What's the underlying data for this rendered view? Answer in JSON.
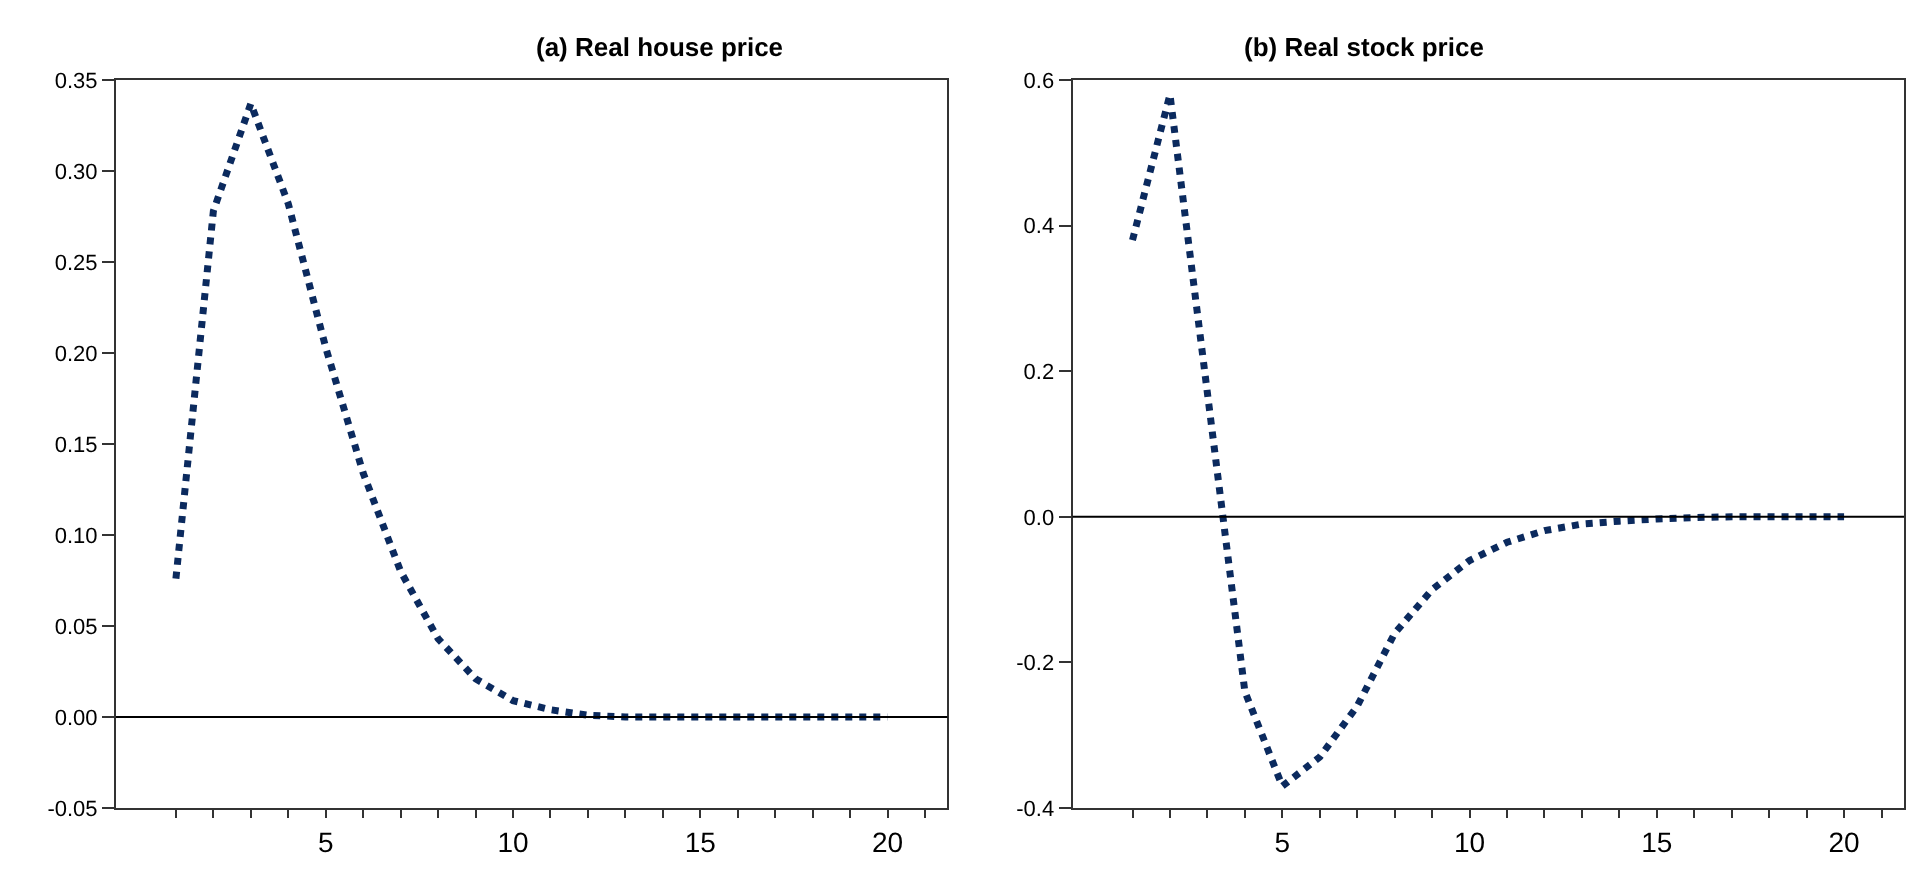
{
  "chart_data": [
    {
      "type": "line",
      "title": "(a) Real house price",
      "x": [
        1,
        2,
        3,
        4,
        5,
        6,
        7,
        8,
        9,
        10,
        11,
        12,
        13,
        14,
        15,
        16,
        17,
        18,
        19,
        20
      ],
      "series": [
        {
          "color": "#0b2a5e",
          "values": [
            0.076,
            0.278,
            0.337,
            0.282,
            0.203,
            0.134,
            0.08,
            0.043,
            0.021,
            0.009,
            0.004,
            0.001,
            0.0,
            0.0,
            0.0,
            0.0,
            0.0,
            0.0,
            0.0,
            0.0
          ]
        }
      ],
      "xlim": [
        -0.6,
        21.6
      ],
      "ylim": [
        -0.05,
        0.35
      ],
      "xticks": [
        {
          "value": 1,
          "label": null
        },
        {
          "value": 2,
          "label": null
        },
        {
          "value": 3,
          "label": null
        },
        {
          "value": 4,
          "label": null
        },
        5,
        {
          "value": 6,
          "label": null
        },
        {
          "value": 7,
          "label": null
        },
        {
          "value": 8,
          "label": null
        },
        {
          "value": 9,
          "label": null
        },
        10,
        {
          "value": 11,
          "label": null
        },
        {
          "value": 12,
          "label": null
        },
        {
          "value": 13,
          "label": null
        },
        {
          "value": 14,
          "label": null
        },
        15,
        {
          "value": 16,
          "label": null
        },
        {
          "value": 17,
          "label": null
        },
        {
          "value": 18,
          "label": null
        },
        {
          "value": 19,
          "label": null
        },
        20,
        {
          "value": 21,
          "label": null
        }
      ],
      "yticks": [
        {
          "value": -0.05,
          "label": "-0.05"
        },
        {
          "value": 0,
          "label": "0.00"
        },
        {
          "value": 0.05,
          "label": "0.05"
        },
        {
          "value": 0.1,
          "label": "0.10"
        },
        {
          "value": 0.15,
          "label": "0.15"
        },
        {
          "value": 0.2,
          "label": "0.20"
        },
        {
          "value": 0.25,
          "label": "0.25"
        },
        {
          "value": 0.3,
          "label": "0.30"
        },
        {
          "value": 0.35,
          "label": "0.35"
        }
      ],
      "ref_lines": [
        {
          "axis": "y",
          "value": 0,
          "color": "#000000"
        }
      ],
      "marker": "none",
      "line_style": "dotted"
    },
    {
      "type": "line",
      "title": "(b) Real stock price",
      "x": [
        1,
        2,
        3,
        4,
        5,
        6,
        7,
        8,
        9,
        10,
        11,
        12,
        13,
        14,
        15,
        16,
        17,
        18,
        19,
        20
      ],
      "series": [
        {
          "color": "#0b2a5e",
          "values": [
            0.38,
            0.58,
            0.17,
            -0.24,
            -0.37,
            -0.33,
            -0.26,
            -0.16,
            -0.1,
            -0.06,
            -0.035,
            -0.019,
            -0.01,
            -0.006,
            -0.003,
            -0.001,
            0.0,
            0.0,
            0.0,
            0.0
          ]
        }
      ],
      "xlim": [
        -0.6,
        21.6
      ],
      "ylim": [
        -0.4,
        0.6
      ],
      "xticks": [
        {
          "value": 1,
          "label": null
        },
        {
          "value": 2,
          "label": null
        },
        {
          "value": 3,
          "label": null
        },
        {
          "value": 4,
          "label": null
        },
        5,
        {
          "value": 6,
          "label": null
        },
        {
          "value": 7,
          "label": null
        },
        {
          "value": 8,
          "label": null
        },
        {
          "value": 9,
          "label": null
        },
        10,
        {
          "value": 11,
          "label": null
        },
        {
          "value": 12,
          "label": null
        },
        {
          "value": 13,
          "label": null
        },
        {
          "value": 14,
          "label": null
        },
        15,
        {
          "value": 16,
          "label": null
        },
        {
          "value": 17,
          "label": null
        },
        {
          "value": 18,
          "label": null
        },
        {
          "value": 19,
          "label": null
        },
        20,
        {
          "value": 21,
          "label": null
        }
      ],
      "yticks": [
        {
          "value": -0.4,
          "label": "-0.4"
        },
        {
          "value": -0.2,
          "label": "-0.2"
        },
        {
          "value": 0,
          "label": "0.0"
        },
        {
          "value": 0.2,
          "label": "0.2"
        },
        {
          "value": 0.4,
          "label": "0.4"
        },
        {
          "value": 0.6,
          "label": "0.6"
        }
      ],
      "ref_lines": [
        {
          "axis": "y",
          "value": 0,
          "color": "#000000"
        }
      ],
      "marker": "none",
      "line_style": "dotted"
    }
  ]
}
